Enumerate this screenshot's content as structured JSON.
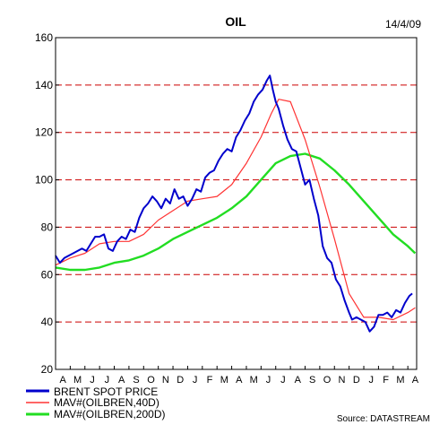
{
  "chart_data": {
    "type": "line",
    "title": "OIL",
    "date": "14/4/09",
    "source": "Source: DATASTREAM",
    "xlabel": "",
    "ylabel": "",
    "ylim": [
      20,
      160
    ],
    "yticks": [
      "160",
      "140",
      "120",
      "100",
      "80",
      "60",
      "40",
      "20"
    ],
    "ytick_values": [
      160,
      140,
      120,
      100,
      80,
      60,
      40,
      20
    ],
    "categories": [
      "A",
      "M",
      "J",
      "J",
      "A",
      "S",
      "O",
      "N",
      "D",
      "J",
      "F",
      "M",
      "A",
      "M",
      "J",
      "J",
      "A",
      "S",
      "O",
      "N",
      "D",
      "J",
      "F",
      "M",
      "A"
    ],
    "month_index_range": [
      0,
      24.6
    ],
    "grid": "dashed horizontal lines at 40, 60, 80, 100, 120, 140",
    "grid_color": "#cc0000",
    "legend_position": "bottom-left",
    "series": [
      {
        "name": "BRENT SPOT PRICE",
        "color": "#0000cc",
        "x": [
          0.0,
          0.3,
          0.6,
          0.9,
          1.2,
          1.5,
          1.8,
          2.1,
          2.4,
          2.7,
          3.0,
          3.3,
          3.6,
          3.9,
          4.2,
          4.5,
          4.8,
          5.1,
          5.4,
          5.7,
          6.0,
          6.3,
          6.6,
          6.9,
          7.2,
          7.5,
          7.8,
          8.1,
          8.4,
          8.7,
          9.0,
          9.3,
          9.6,
          9.9,
          10.2,
          10.5,
          10.8,
          11.1,
          11.4,
          11.7,
          12.0,
          12.3,
          12.6,
          12.9,
          13.2,
          13.5,
          13.8,
          14.1,
          14.4,
          14.6,
          14.8,
          15.0,
          15.2,
          15.5,
          15.8,
          16.1,
          16.4,
          16.7,
          17.0,
          17.3,
          17.6,
          17.9,
          18.2,
          18.5,
          18.8,
          19.1,
          19.4,
          19.7,
          20.0,
          20.2,
          20.5,
          20.8,
          21.1,
          21.4,
          21.7,
          22.0,
          22.3,
          22.6,
          22.9,
          23.2,
          23.5,
          23.8,
          24.1,
          24.3
        ],
        "values": [
          68,
          65,
          67,
          68,
          69,
          70,
          71,
          70,
          73,
          76,
          76,
          77,
          71,
          70,
          74,
          76,
          75,
          79,
          78,
          84,
          88,
          90,
          93,
          91,
          88,
          92,
          90,
          96,
          92,
          93,
          89,
          92,
          96,
          95,
          101,
          103,
          104,
          108,
          111,
          113,
          112,
          118,
          121,
          125,
          128,
          133,
          136,
          138,
          142,
          144,
          138,
          133,
          130,
          123,
          117,
          113,
          112,
          105,
          98,
          100,
          92,
          85,
          72,
          67,
          65,
          58,
          55,
          49,
          44,
          41,
          42,
          41,
          40,
          36,
          38,
          43,
          43,
          44,
          42,
          45,
          44,
          48,
          51,
          52
        ]
      },
      {
        "name": "MAV#(OILBREN,40D)",
        "color": "#ff3333",
        "x": [
          0.0,
          1.0,
          2.0,
          3.0,
          4.0,
          5.0,
          6.0,
          7.0,
          8.0,
          9.0,
          10.0,
          11.0,
          12.0,
          13.0,
          14.0,
          14.7,
          15.2,
          16.0,
          17.0,
          18.0,
          19.0,
          20.0,
          21.0,
          22.0,
          23.0,
          24.0,
          24.5
        ],
        "values": [
          64,
          67,
          69,
          73,
          74,
          74,
          77,
          83,
          87,
          91,
          92,
          93,
          98,
          107,
          118,
          128,
          134,
          133,
          117,
          97,
          75,
          52,
          42,
          42,
          41,
          44,
          46
        ]
      },
      {
        "name": "MAV#(OILBREN,200D)",
        "color": "#22dd22",
        "x": [
          0.0,
          1.0,
          2.0,
          3.0,
          4.0,
          5.0,
          6.0,
          7.0,
          8.0,
          9.0,
          10.0,
          11.0,
          12.0,
          13.0,
          14.0,
          15.0,
          16.0,
          17.0,
          18.0,
          19.0,
          20.0,
          21.0,
          22.0,
          23.0,
          24.0,
          24.5
        ],
        "values": [
          63,
          62,
          62,
          63,
          65,
          66,
          68,
          71,
          75,
          78,
          81,
          84,
          88,
          93,
          100,
          107,
          110,
          111,
          109,
          104,
          98,
          91,
          84,
          77,
          72,
          69
        ]
      }
    ]
  }
}
